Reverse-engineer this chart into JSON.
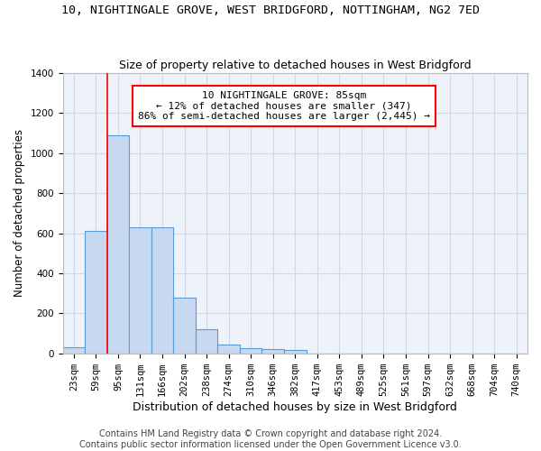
{
  "title": "10, NIGHTINGALE GROVE, WEST BRIDGFORD, NOTTINGHAM, NG2 7ED",
  "subtitle": "Size of property relative to detached houses in West Bridgford",
  "xlabel": "Distribution of detached houses by size in West Bridgford",
  "ylabel": "Number of detached properties",
  "bin_labels": [
    "23sqm",
    "59sqm",
    "95sqm",
    "131sqm",
    "166sqm",
    "202sqm",
    "238sqm",
    "274sqm",
    "310sqm",
    "346sqm",
    "382sqm",
    "417sqm",
    "453sqm",
    "489sqm",
    "525sqm",
    "561sqm",
    "597sqm",
    "632sqm",
    "668sqm",
    "704sqm",
    "740sqm"
  ],
  "bar_heights": [
    30,
    610,
    1090,
    630,
    630,
    280,
    120,
    45,
    25,
    22,
    15,
    0,
    0,
    0,
    0,
    0,
    0,
    0,
    0,
    0,
    0
  ],
  "bar_color": "#c7d9f0",
  "bar_edge_color": "#5b9bd5",
  "ylim": [
    0,
    1400
  ],
  "yticks": [
    0,
    200,
    400,
    600,
    800,
    1000,
    1200,
    1400
  ],
  "grid_color": "#d0d8e8",
  "bg_color": "#edf2fb",
  "red_line_x": 1.5,
  "annotation_text": "10 NIGHTINGALE GROVE: 85sqm\n← 12% of detached houses are smaller (347)\n86% of semi-detached houses are larger (2,445) →",
  "footer_line1": "Contains HM Land Registry data © Crown copyright and database right 2024.",
  "footer_line2": "Contains public sector information licensed under the Open Government Licence v3.0.",
  "title_fontsize": 9.5,
  "subtitle_fontsize": 9,
  "xlabel_fontsize": 9,
  "ylabel_fontsize": 8.5,
  "tick_fontsize": 7.5,
  "annotation_fontsize": 8,
  "footer_fontsize": 7
}
